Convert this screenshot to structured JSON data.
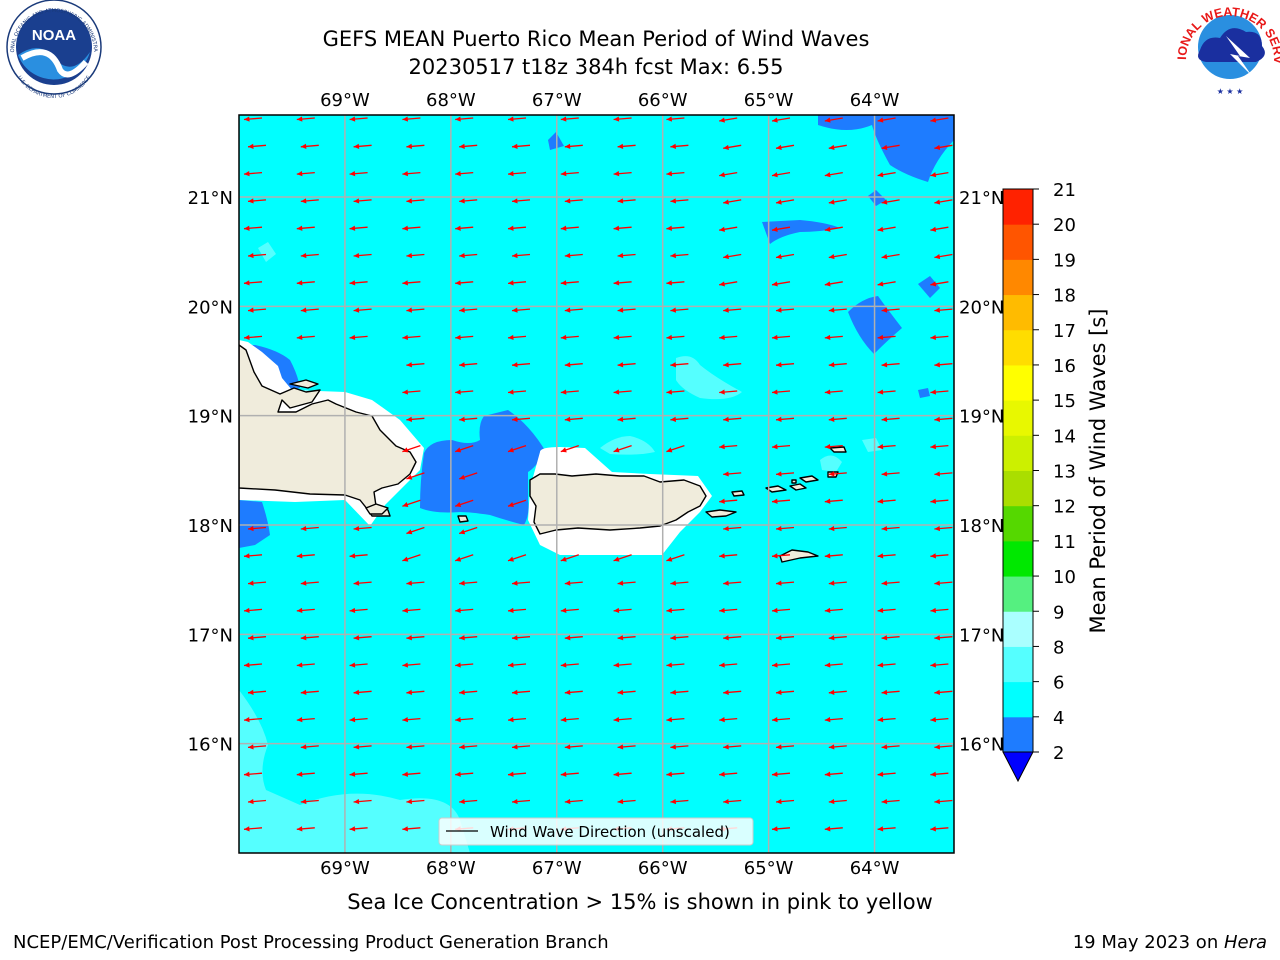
{
  "header": {
    "title": "GEFS MEAN Puerto Rico Mean Period of Wind Waves",
    "subtitle": "20230517 t18z 384h fcst   Max: 6.55"
  },
  "logos": {
    "noaa": {
      "label": "NOAA",
      "ring_text_top": "NATIONAL OCEANIC AND ATMOSPHERIC ADMINISTRATION",
      "ring_text_bottom": "U.S. DEPARTMENT OF COMMERCE"
    },
    "nws": {
      "ring_text": "NATIONAL WEATHER SERVICE"
    }
  },
  "map": {
    "lon_ticks": [
      "69°W",
      "68°W",
      "67°W",
      "66°W",
      "65°W",
      "64°W"
    ],
    "lat_ticks": [
      "21°N",
      "20°N",
      "19°N",
      "18°N",
      "17°N",
      "16°N"
    ],
    "lon_values": [
      -69,
      -68,
      -67,
      -66,
      -65,
      -64
    ],
    "lat_values": [
      21,
      20,
      19,
      18,
      17,
      16
    ],
    "lon_range": [
      -70,
      -63.25
    ],
    "lat_range": [
      15,
      21.75
    ],
    "legend_label": "Wind Wave Direction (unscaled)",
    "colors": {
      "ocean_main": "#00ffff",
      "ocean_light": "#55ffff",
      "ocean_low": "#1e7cff",
      "land": "#f0ecdc",
      "arrow": "#ff0000",
      "no_data": "#ffffff"
    }
  },
  "colorbar": {
    "label": "Mean Period of Wind Waves [s]",
    "ticks": [
      "21",
      "20",
      "19",
      "18",
      "17",
      "16",
      "15",
      "14",
      "13",
      "12",
      "11",
      "10",
      "9",
      "8",
      "6",
      "4",
      "2"
    ],
    "levels": [
      2,
      4,
      6,
      8,
      9,
      10,
      11,
      12,
      13,
      14,
      15,
      16,
      17,
      18,
      19,
      20,
      21
    ],
    "colors": [
      "#1e7cff",
      "#00ffff",
      "#55ffff",
      "#aaffff",
      "#55f080",
      "#00e800",
      "#55d800",
      "#aade00",
      "#ccf000",
      "#e8f800",
      "#ffff00",
      "#ffdd00",
      "#ffbb00",
      "#ff8800",
      "#ff5500",
      "#ff2200"
    ],
    "under_color": "#0000ff"
  },
  "caption": "Sea Ice Concentration > 15% is shown in pink to yellow",
  "footer": {
    "left": "NCEP/EMC/Verification Post Processing Product Generation Branch",
    "right_prefix": "19 May 2023 on ",
    "right_host": "Hera"
  }
}
